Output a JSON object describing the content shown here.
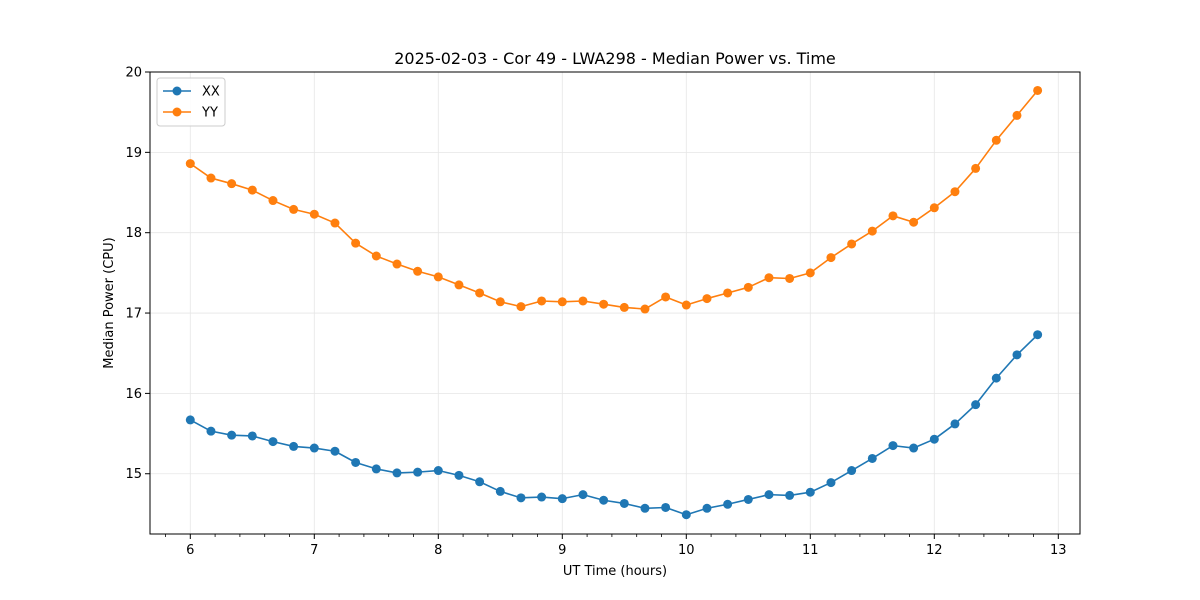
{
  "chart_data": {
    "type": "line",
    "title": "2025-02-03 - Cor 49 - LWA298 - Median Power vs. Time",
    "xlabel": "UT Time (hours)",
    "ylabel": "Median Power (CPU)",
    "xlim": [
      5.675,
      13.175
    ],
    "ylim": [
      14.25,
      20.0
    ],
    "xticks": [
      6,
      7,
      8,
      9,
      10,
      11,
      12,
      13
    ],
    "yticks": [
      15,
      16,
      17,
      18,
      19,
      20
    ],
    "grid": true,
    "legend_position": "top-left",
    "x": [
      6.0,
      6.1667,
      6.3333,
      6.5,
      6.6667,
      6.8333,
      7.0,
      7.1667,
      7.3333,
      7.5,
      7.6667,
      7.8333,
      8.0,
      8.1667,
      8.3333,
      8.5,
      8.6667,
      8.8333,
      9.0,
      9.1667,
      9.3333,
      9.5,
      9.6667,
      9.8333,
      10.0,
      10.1667,
      10.3333,
      10.5,
      10.6667,
      10.8333,
      11.0,
      11.1667,
      11.3333,
      11.5,
      11.6667,
      11.8333,
      12.0,
      12.1667,
      12.3333,
      12.5,
      12.6667,
      12.8333
    ],
    "series": [
      {
        "name": "XX",
        "color": "#1f77b4",
        "values": [
          15.67,
          15.53,
          15.48,
          15.47,
          15.4,
          15.34,
          15.32,
          15.28,
          15.14,
          15.06,
          15.01,
          15.02,
          15.04,
          14.98,
          14.9,
          14.78,
          14.7,
          14.71,
          14.69,
          14.74,
          14.67,
          14.63,
          14.57,
          14.58,
          14.49,
          14.57,
          14.62,
          14.68,
          14.74,
          14.73,
          14.77,
          14.89,
          15.04,
          15.19,
          15.35,
          15.32,
          15.43,
          15.62,
          15.86,
          16.19,
          16.48,
          16.73
        ]
      },
      {
        "name": "YY",
        "color": "#ff7f0e",
        "values": [
          18.86,
          18.68,
          18.61,
          18.53,
          18.4,
          18.29,
          18.23,
          18.12,
          17.87,
          17.71,
          17.61,
          17.52,
          17.45,
          17.35,
          17.25,
          17.14,
          17.08,
          17.15,
          17.14,
          17.15,
          17.11,
          17.07,
          17.05,
          17.2,
          17.1,
          17.18,
          17.25,
          17.32,
          17.44,
          17.43,
          17.5,
          17.69,
          17.86,
          18.02,
          18.21,
          18.13,
          18.31,
          18.51,
          18.8,
          19.15,
          19.46,
          19.77
        ]
      }
    ]
  }
}
